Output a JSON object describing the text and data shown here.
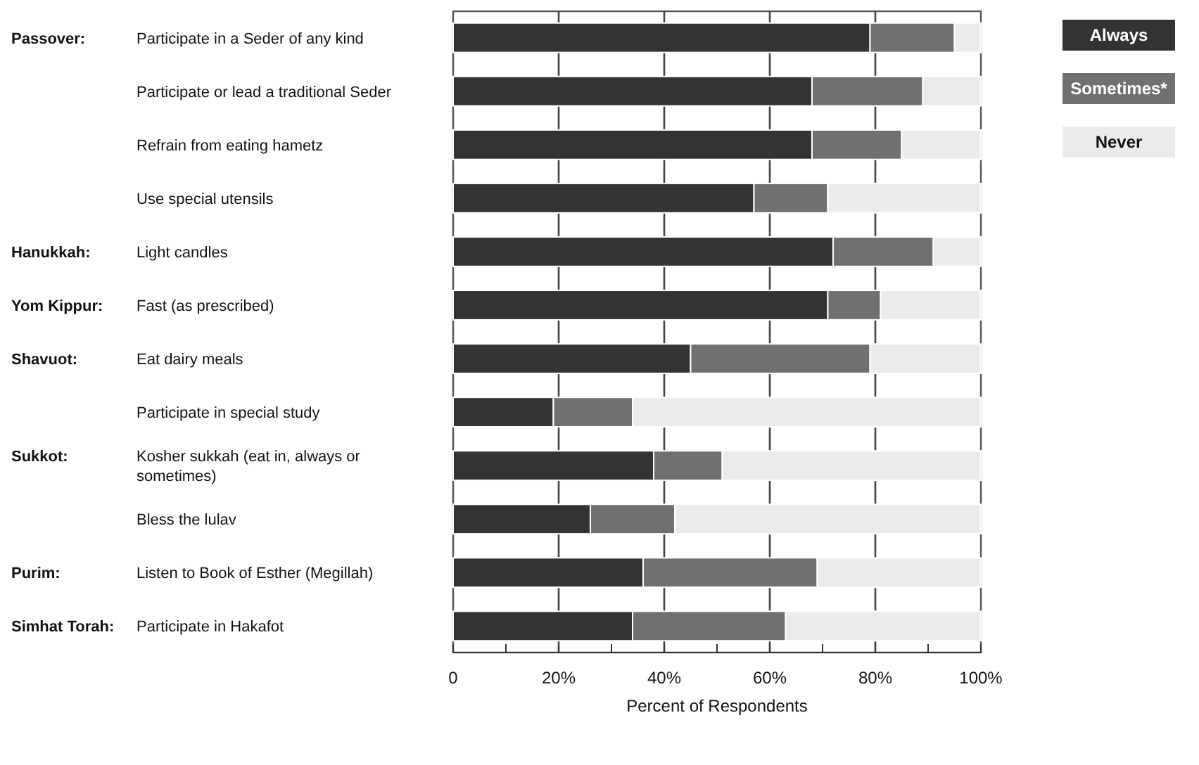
{
  "chart_data": {
    "type": "bar",
    "orientation": "horizontal",
    "stacked": true,
    "categories": [
      "Participate in a Seder of any kind",
      "Participate or lead a traditional Seder",
      "Refrain from eating hametz",
      "Use special utensils",
      "Light candles",
      "Fast (as prescribed)",
      "Eat dairy meals",
      "Participate in special study",
      "Kosher sukkah (eat in, always or sometimes)",
      "Bless the lulav",
      "Listen to Book of Esther (Megillah)",
      "Participate in Hakafot"
    ],
    "series": [
      {
        "name": "Always",
        "color": "#333333",
        "values": [
          79,
          68,
          68,
          57,
          72,
          71,
          45,
          19,
          38,
          26,
          36,
          34
        ]
      },
      {
        "name": "Sometimes*",
        "color": "#707070",
        "values": [
          16,
          21,
          17,
          14,
          19,
          10,
          34,
          15,
          13,
          16,
          33,
          29
        ]
      },
      {
        "name": "Never",
        "color": "#ebebeb",
        "values": [
          5,
          11,
          15,
          29,
          9,
          19,
          21,
          66,
          49,
          58,
          31,
          37
        ]
      }
    ],
    "xlim": [
      0,
      100
    ],
    "xticks": [
      {
        "value": 0,
        "label": "0"
      },
      {
        "value": 10,
        "label": null
      },
      {
        "value": 20,
        "label": "20%"
      },
      {
        "value": 30,
        "label": null
      },
      {
        "value": 40,
        "label": "40%"
      },
      {
        "value": 50,
        "label": null
      },
      {
        "value": 60,
        "label": "60%"
      },
      {
        "value": 70,
        "label": null
      },
      {
        "value": 80,
        "label": "80%"
      },
      {
        "value": 90,
        "label": null
      },
      {
        "value": 100,
        "label": "100%"
      }
    ],
    "xlabel": "Percent of Respondents",
    "grid": "x",
    "legend": "right",
    "annotations": [
      "Passover:",
      "Hanukkah:",
      "Yom Kippur:",
      "Shavuot:",
      "Sukkot:",
      "Purim:",
      "Simhat Torah:"
    ]
  }
}
